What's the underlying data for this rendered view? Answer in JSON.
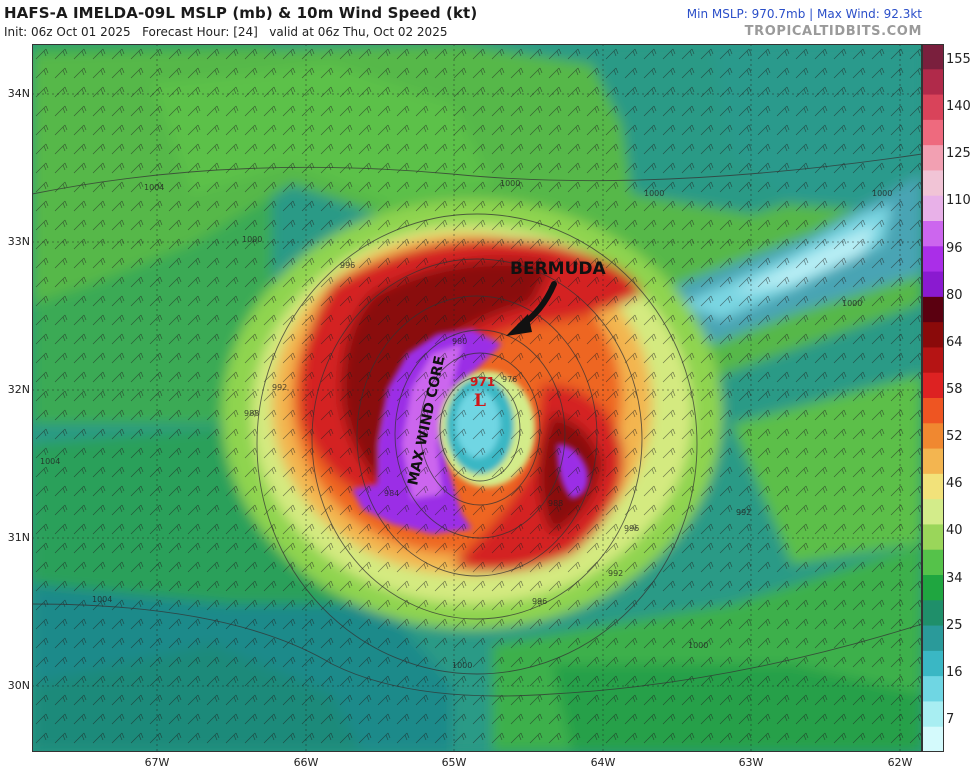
{
  "header": {
    "title": "HAFS-A IMELDA-09L MSLP (mb) & 10m Wind Speed (kt)",
    "init": "Init: 06z Oct 01 2025",
    "forecast_hour": "Forecast Hour: [24]",
    "valid": "valid at 06z Thu, Oct 02 2025",
    "stats": "Min MSLP: 970.7mb | Max Wind: 92.3kt",
    "site": "TROPICALTIDBITS.COM"
  },
  "map": {
    "lat_labels": [
      "34N",
      "33N",
      "32N",
      "31N",
      "30N"
    ],
    "lon_labels": [
      "67W",
      "66W",
      "65W",
      "64W",
      "63W",
      "62W"
    ],
    "annotation_bermuda": "BERMUDA",
    "annotation_core": "MAX WIND CORE",
    "center_pressure": "971",
    "center_symbol": "L",
    "isobar_labels": [
      "1004",
      "1000",
      "996",
      "992",
      "988",
      "984",
      "980",
      "976",
      "1000",
      "1000",
      "996",
      "992",
      "988",
      "1000",
      "996",
      "992",
      "1000",
      "1004",
      "1004",
      "1000",
      "1000"
    ]
  },
  "colorbar": {
    "labels": [
      "155",
      "140",
      "125",
      "110",
      "96",
      "80",
      "64",
      "58",
      "52",
      "46",
      "40",
      "34",
      "25",
      "16",
      "7"
    ],
    "colors": [
      "#7a1f3d",
      "#b02a4a",
      "#d9435a",
      "#ee6a7e",
      "#f2a0b2",
      "#f1c4d6",
      "#e8b1e8",
      "#cc66ee",
      "#aa2ee8",
      "#8a1ad0",
      "#5a0010",
      "#8a0a0a",
      "#b51414",
      "#dd2222",
      "#ee5522",
      "#f08830",
      "#f3b550",
      "#f2e27a",
      "#d3ec8a",
      "#9ad65a",
      "#55c24a",
      "#1fa640",
      "#1f8f6a",
      "#2a9a9a",
      "#3ab7c4",
      "#6fd6e3",
      "#a8eef2",
      "#d4fafc"
    ]
  }
}
